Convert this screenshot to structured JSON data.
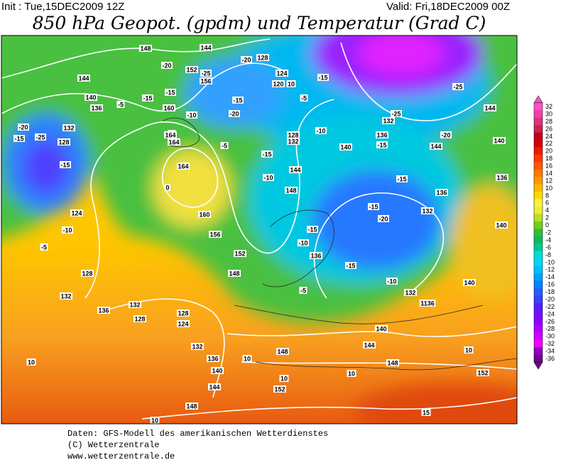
{
  "header": {
    "init": "Init : Tue,15DEC2009 12Z",
    "valid": "Valid: Fri,18DEC2009 00Z",
    "title": "850 hPa Geopot. (gpdm) und Temperatur (Grad C)"
  },
  "map_labels": [
    "148",
    "144",
    "-20",
    "152",
    "-25",
    "156",
    "128",
    "-20",
    "124",
    "120",
    "10",
    "-15",
    "-5",
    "144",
    "140",
    "136",
    "-15",
    "-15",
    "-5",
    "160",
    "-10",
    "-15",
    "-20",
    "132",
    "-20",
    "-25",
    "-15",
    "128",
    "-5",
    "164",
    "164",
    "-5",
    "128",
    "132",
    "-10",
    "136",
    "140",
    "-15",
    "-25",
    "132",
    "-25",
    "144",
    "-20",
    "144",
    "140",
    "-15",
    "-15",
    "164",
    "144",
    "-10",
    "-15",
    "0",
    "148",
    "136",
    "136",
    "124",
    "160",
    "-15",
    "132",
    "-20",
    "-10",
    "156",
    "-15",
    "140",
    "-5",
    "152",
    "-10",
    "136",
    "-15",
    "128",
    "148",
    "-10",
    "-5",
    "132",
    "132",
    "140",
    "1136",
    "136",
    "132",
    "128",
    "128",
    "124",
    "140",
    "132",
    "144",
    "148",
    "10",
    "136",
    "148",
    "140",
    "10",
    "10",
    "10",
    "144",
    "10",
    "152",
    "152",
    "148",
    "15",
    "10"
  ],
  "colorbar": {
    "ticks": [
      32,
      30,
      28,
      26,
      24,
      22,
      20,
      18,
      16,
      14,
      12,
      10,
      8,
      6,
      4,
      2,
      0,
      -2,
      -4,
      -6,
      -8,
      -10,
      -12,
      -14,
      -16,
      -18,
      -20,
      -22,
      -24,
      -26,
      -28,
      -30,
      -32,
      -34,
      -36
    ],
    "colors": [
      "#ff50c8",
      "#f040a8",
      "#e03080",
      "#d02050",
      "#c00020",
      "#d80000",
      "#f01800",
      "#ff3800",
      "#ff5800",
      "#ff7800",
      "#ff9800",
      "#ffb800",
      "#ffd800",
      "#fff040",
      "#e8f030",
      "#b8e020",
      "#70d020",
      "#30c030",
      "#10b860",
      "#00c898",
      "#00e0d0",
      "#00d8f8",
      "#00c0ff",
      "#00a0ff",
      "#0080ff",
      "#2060ff",
      "#3c40ff",
      "#5020ff",
      "#7010ff",
      "#9000ff",
      "#b000ff",
      "#d000ff",
      "#f000ff",
      "#9000c0",
      "#700090"
    ]
  },
  "footer": [
    "Daten: GFS-Modell des amerikanischen Wetterdienstes",
    "(C) Wetterzentrale",
    "www.wetterzentrale.de"
  ]
}
